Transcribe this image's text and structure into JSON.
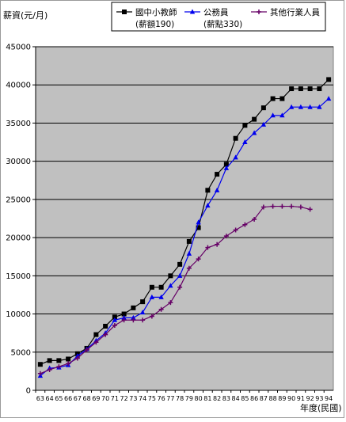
{
  "chart_data": {
    "type": "line",
    "title": "",
    "ylabel": "薪資(元/月)",
    "xlabel": "年度(民國)",
    "ylim": [
      0,
      45000
    ],
    "yticks": [
      0,
      5000,
      10000,
      15000,
      20000,
      25000,
      30000,
      35000,
      40000,
      45000
    ],
    "ytick_labels": [
      "0",
      "5000",
      "10000",
      "15000",
      "20000",
      "25000",
      "30000",
      "35000",
      "40000",
      "45000"
    ],
    "x": [
      "63",
      "64",
      "65",
      "66",
      "67",
      "68",
      "69",
      "70",
      "71",
      "72",
      "73",
      "74",
      "75",
      "76",
      "77",
      "78",
      "79",
      "80",
      "81",
      "82",
      "83",
      "84",
      "85",
      "86",
      "87",
      "88",
      "89",
      "90",
      "91",
      "92",
      "93",
      "94"
    ],
    "grid": true,
    "plot_background": "#c0c0c0",
    "legend_position": "top-right",
    "series": [
      {
        "name": "國中小教師",
        "sub": "(薪額190)",
        "color": "#000000",
        "marker": "square",
        "values": [
          3400,
          3900,
          3900,
          4100,
          4800,
          5500,
          7300,
          8400,
          9600,
          10000,
          10800,
          11600,
          13500,
          13500,
          15000,
          16500,
          19500,
          21300,
          26200,
          28300,
          29600,
          33000,
          34700,
          35500,
          37000,
          38200,
          38200,
          39500,
          39500,
          39500,
          39500,
          40700
        ]
      },
      {
        "name": "公務員",
        "sub": "(薪點330)",
        "color": "#0000ee",
        "marker": "triangle",
        "values": [
          1900,
          2900,
          3000,
          3300,
          4500,
          5400,
          6500,
          7500,
          9200,
          9500,
          9500,
          10200,
          12200,
          12200,
          13700,
          15000,
          17900,
          22000,
          24200,
          26200,
          29100,
          30500,
          32500,
          33700,
          34800,
          36000,
          36000,
          37100,
          37100,
          37100,
          37100,
          38200
        ]
      },
      {
        "name": "其他行業人員",
        "sub": "",
        "color": "#660066",
        "marker": "plus",
        "values": [
          2200,
          2700,
          3100,
          3500,
          4200,
          5300,
          6300,
          7300,
          8500,
          9200,
          9200,
          9200,
          9700,
          10600,
          11500,
          13500,
          16000,
          17200,
          18700,
          19100,
          20200,
          21000,
          21700,
          22400,
          24000,
          24100,
          24100,
          24100,
          24000,
          23700,
          null,
          null
        ]
      }
    ]
  }
}
